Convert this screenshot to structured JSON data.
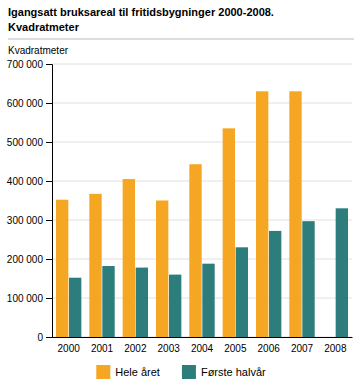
{
  "chart_data": {
    "type": "bar",
    "title": "Igangsatt bruksareal til fritidsbygninger 2000-2008.",
    "subtitle": "Kvadratmeter",
    "y_label": "Kvadratmeter",
    "categories": [
      "2000",
      "2001",
      "2002",
      "2003",
      "2004",
      "2005",
      "2006",
      "2007",
      "2008"
    ],
    "series": [
      {
        "name": "Hele året",
        "color": "#F5A623",
        "values": [
          352000,
          367000,
          405000,
          350000,
          443000,
          535000,
          630000,
          630000,
          null
        ]
      },
      {
        "name": "Første halvår",
        "color": "#2E7D7D",
        "values": [
          152000,
          182000,
          178000,
          160000,
          188000,
          230000,
          272000,
          297000,
          330000
        ]
      }
    ],
    "ylim": [
      0,
      700000
    ],
    "yticks": [
      0,
      {
        "value": 100000,
        "label": "100 000"
      },
      {
        "value": 200000,
        "label": "200 000"
      },
      {
        "value": 300000,
        "label": "300 000"
      },
      {
        "value": 400000,
        "label": "400 000"
      },
      {
        "value": 500000,
        "label": "500 000"
      },
      {
        "value": 600000,
        "label": "600 000"
      },
      {
        "value": 700000,
        "label": "700 000"
      }
    ],
    "grid": true,
    "legend": "bottom"
  }
}
